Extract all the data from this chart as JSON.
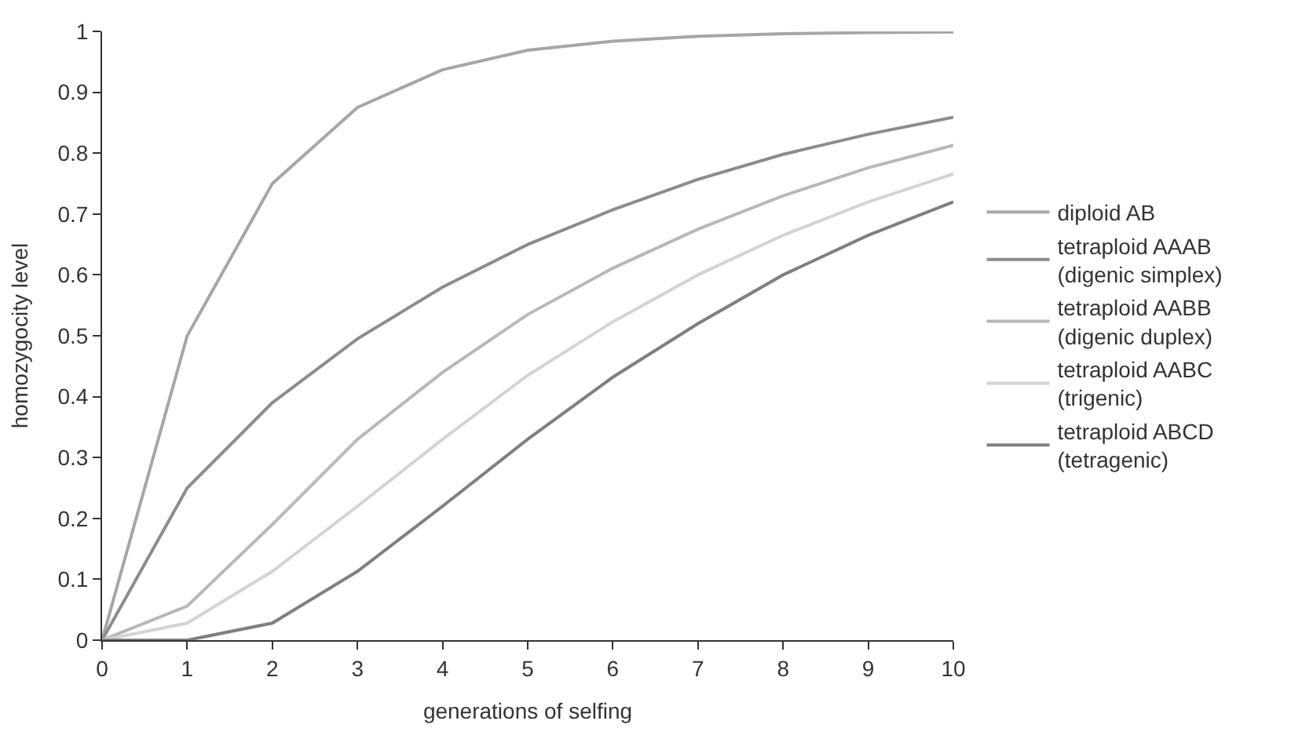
{
  "chart_data": {
    "type": "line",
    "xlabel": "generations of selfing",
    "ylabel": "homozygocity level",
    "x": [
      0,
      1,
      2,
      3,
      4,
      5,
      6,
      7,
      8,
      9,
      10
    ],
    "xlim": [
      0,
      10
    ],
    "xticks": [
      0,
      1,
      2,
      3,
      4,
      5,
      6,
      7,
      8,
      9,
      10
    ],
    "ylim": [
      0,
      1
    ],
    "yticks": [
      0,
      0.1,
      0.2,
      0.3,
      0.4,
      0.5,
      0.6,
      0.7,
      0.8,
      0.9,
      1
    ],
    "legend": "right",
    "marker": "none",
    "line_style": "solid",
    "series": [
      {
        "name": "diploid AB",
        "color": "#a6a6a6",
        "values": [
          0,
          0.5,
          0.75,
          0.875,
          0.937,
          0.969,
          0.984,
          0.992,
          0.996,
          0.998,
          0.999
        ]
      },
      {
        "name": "tetraploid AAAB\n(digenic simplex)",
        "color": "#8c8c8c",
        "values": [
          0,
          0.25,
          0.39,
          0.495,
          0.58,
          0.65,
          0.707,
          0.757,
          0.798,
          0.831,
          0.859
        ]
      },
      {
        "name": "tetraploid AABB\n(digenic duplex)",
        "color": "#b8b8b8",
        "values": [
          0,
          0.056,
          0.19,
          0.33,
          0.44,
          0.535,
          0.611,
          0.675,
          0.73,
          0.776,
          0.813
        ]
      },
      {
        "name": "tetraploid AABC\n(trigenic)",
        "color": "#d4d4d4",
        "values": [
          0,
          0.028,
          0.113,
          0.22,
          0.33,
          0.435,
          0.523,
          0.6,
          0.665,
          0.72,
          0.766
        ]
      },
      {
        "name": "tetraploid ABCD\n(tetragenic)",
        "color": "#7f7f7f",
        "values": [
          0,
          0,
          0.028,
          0.113,
          0.22,
          0.33,
          0.432,
          0.52,
          0.6,
          0.665,
          0.72
        ]
      }
    ]
  }
}
